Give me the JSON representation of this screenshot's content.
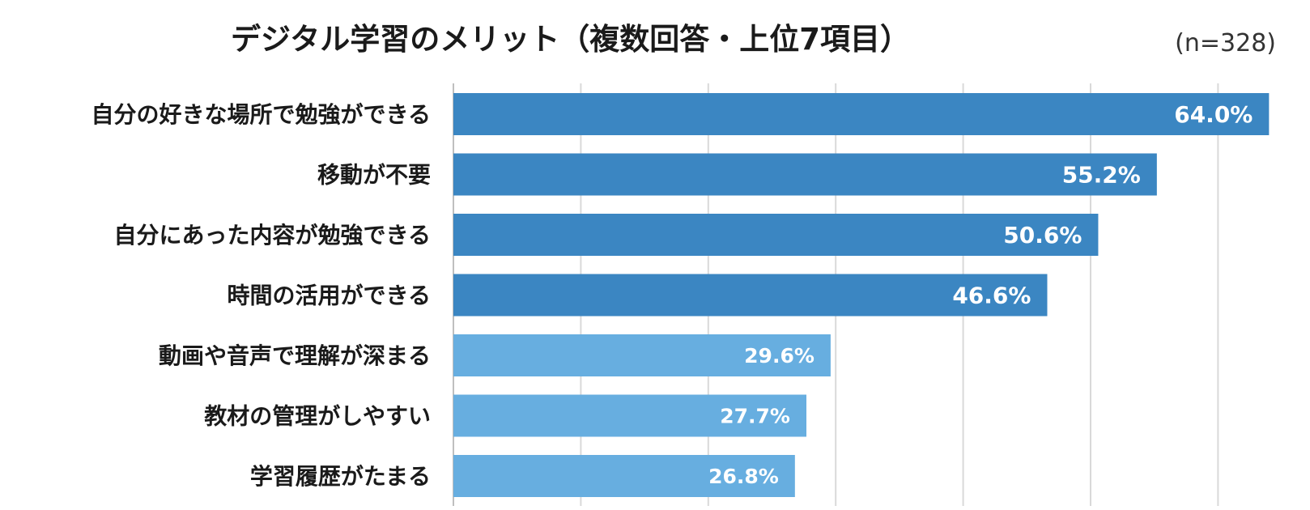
{
  "chart_data": {
    "type": "bar",
    "orientation": "horizontal",
    "title": "デジタル学習のメリット（複数回答・上位7項目）",
    "sample_size": "(n=328)",
    "categories": [
      "自分の好きな場所で勉強ができる",
      "移動が不要",
      "自分にあった内容が勉強できる",
      "時間の活用ができる",
      "動画や音声で理解が深まる",
      "教材の管理がしやすい",
      "学習履歴がたまる"
    ],
    "values": [
      64.0,
      55.2,
      50.6,
      46.6,
      29.6,
      27.7,
      26.8
    ],
    "value_labels": [
      "64.0%",
      "55.2%",
      "50.6%",
      "46.6%",
      "29.6%",
      "27.7%",
      "26.8%"
    ],
    "xlim": [
      0,
      70
    ],
    "grid": true,
    "colors": {
      "top_group": "#3b86c2",
      "lower_group": "#67aee0",
      "grid": "#d9d9d9",
      "axis": "#bfbfbf"
    },
    "highlight_top_n": 4
  }
}
